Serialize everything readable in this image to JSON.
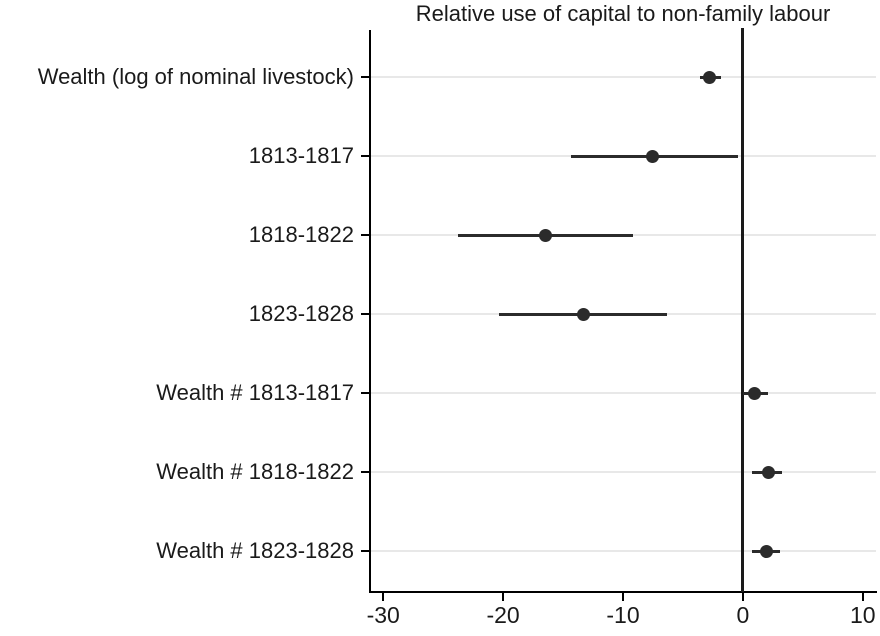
{
  "chart_data": {
    "type": "scatter",
    "subtype": "coefficient-plot-with-confidence-intervals",
    "title": "Relative use of capital to non-family labour",
    "orientation": "horizontal",
    "categories": [
      "Wealth (log of nominal livestock)",
      "1813-1817",
      "1818-1822",
      "1823-1828",
      "Wealth # 1813-1817",
      "Wealth # 1818-1822",
      "Wealth # 1823-1828"
    ],
    "series": [
      {
        "name": "coefficient",
        "values": [
          -2.8,
          -7.5,
          -16.5,
          -13.3,
          1.0,
          2.1,
          2.0
        ],
        "ci_low": [
          -3.6,
          -14.3,
          -23.8,
          -20.3,
          0.0,
          0.8,
          0.8
        ],
        "ci_high": [
          -1.8,
          -0.4,
          -9.2,
          -6.3,
          2.1,
          3.3,
          3.1
        ]
      }
    ],
    "xlabel": "",
    "ylabel": "",
    "x_tick_labels": [
      "-30",
      "-20",
      "-10",
      "0",
      "10"
    ],
    "x_tick_values": [
      -30,
      -20,
      -10,
      0,
      10
    ],
    "xlim": [
      -31.1,
      11.1
    ],
    "reference_line_x": 0,
    "grid": "horizontal-gridlines-per-category",
    "legend": "none",
    "colors": {
      "marker": "#2b2b2b",
      "ci_line": "#2b2b2b",
      "axis": "#000000",
      "reference_line": "#1a1a1a",
      "gridline": "#e8e8e8",
      "text": "#1a1a1a",
      "background": "#ffffff"
    }
  }
}
